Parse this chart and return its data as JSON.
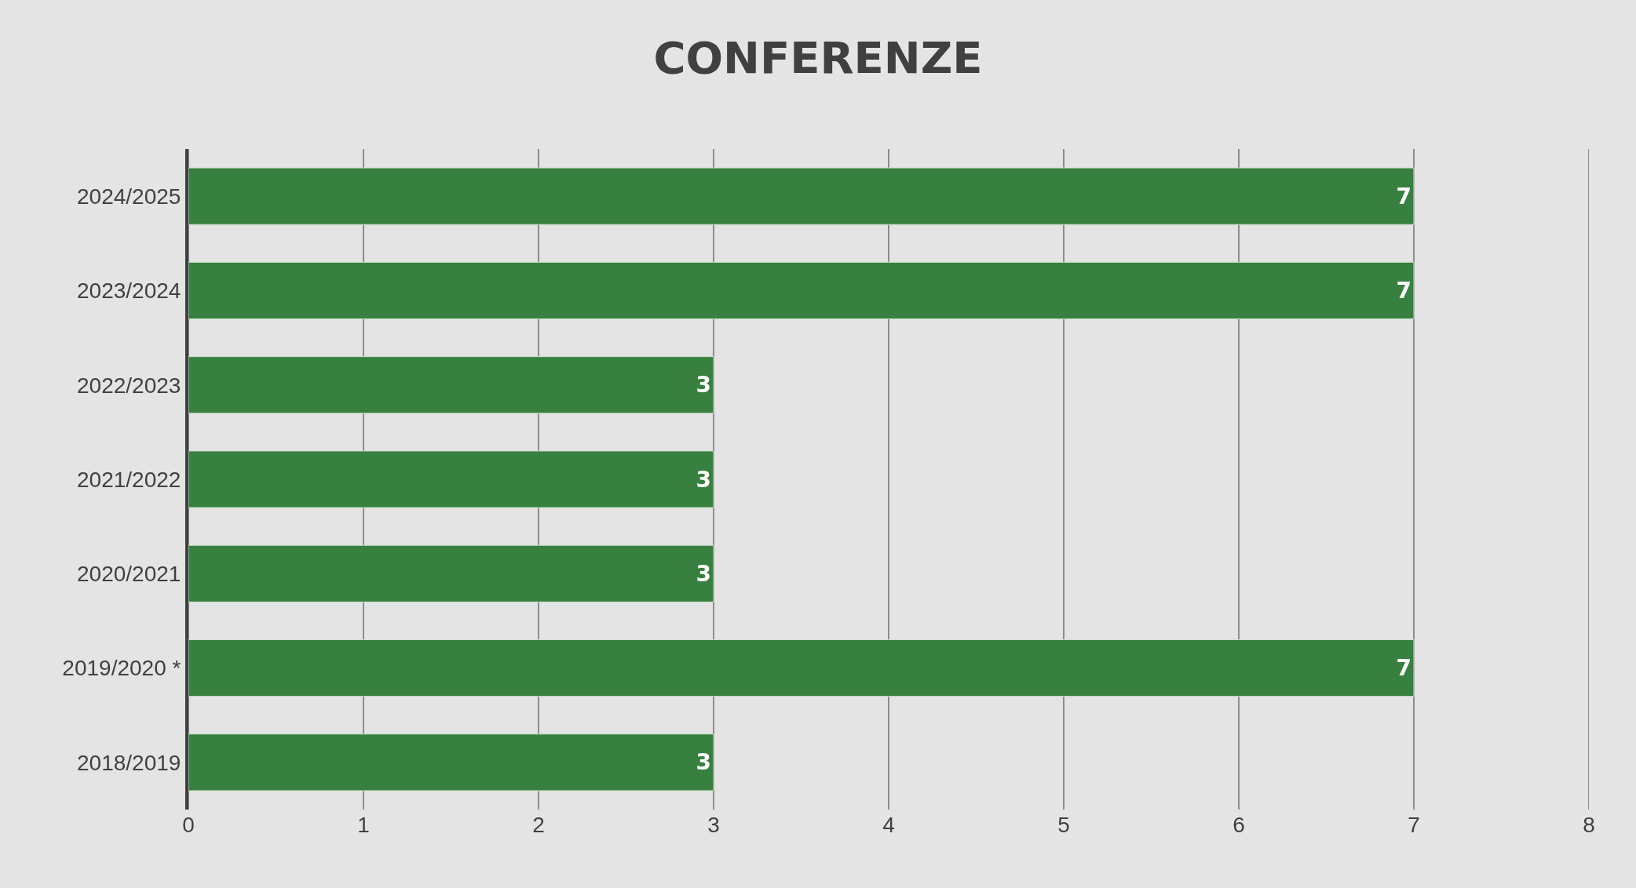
{
  "chart_data": {
    "type": "bar",
    "title": "CONFERENZE",
    "orientation": "horizontal",
    "categories": [
      "2024/2025",
      "2023/2024",
      "2022/2023",
      "2021/2022",
      "2020/2021",
      "2019/2020 *",
      "2018/2019"
    ],
    "values": [
      7,
      7,
      3,
      3,
      3,
      7,
      3
    ],
    "color": "#37803f",
    "xlim": [
      0,
      8
    ],
    "xticks": [
      0,
      1,
      2,
      3,
      4,
      5,
      6,
      7,
      8
    ],
    "grid": "x",
    "data_labels": true
  }
}
